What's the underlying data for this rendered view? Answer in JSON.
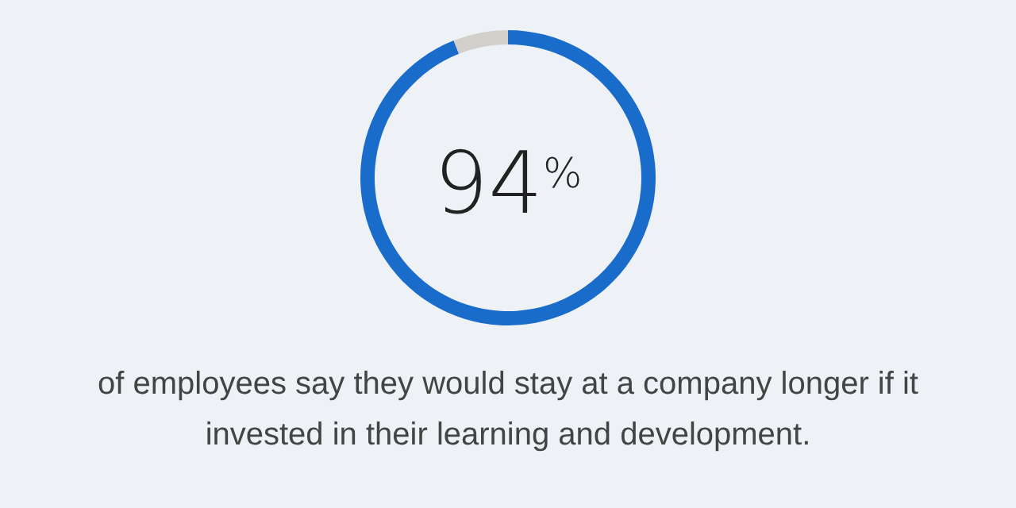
{
  "chart_data": {
    "type": "donut",
    "categories": [
      null,
      null
    ],
    "values": [
      94,
      6
    ],
    "colors": [
      "#1a6ccb",
      "#d3cfca"
    ],
    "value_labels": [
      "94%",
      null
    ],
    "annotations": [
      "of employees say they would stay at a company longer if it invested in their learning and development."
    ]
  }
}
